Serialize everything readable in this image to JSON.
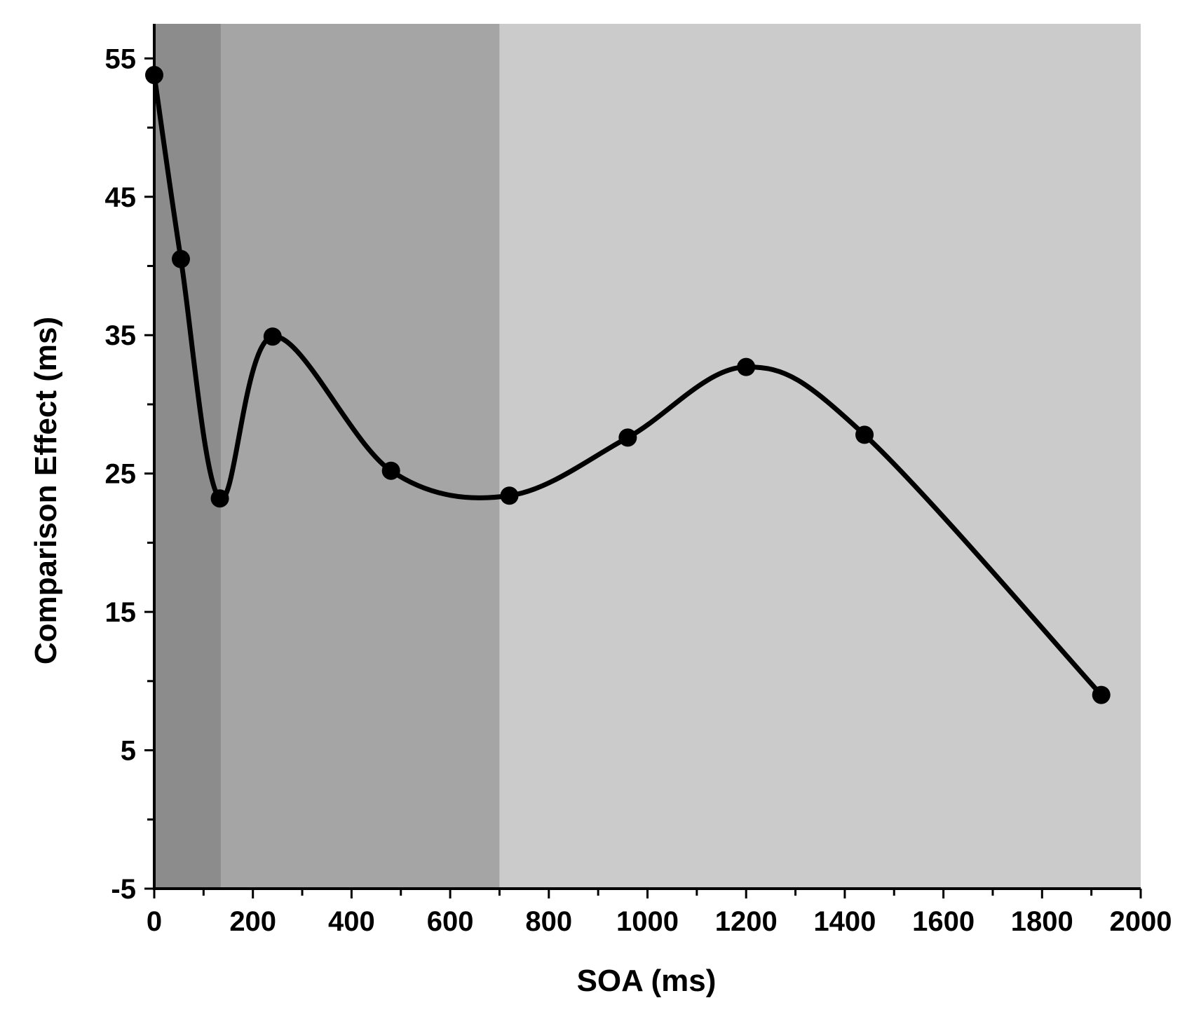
{
  "chart_data": {
    "type": "line",
    "xlabel": "SOA (ms)",
    "ylabel": "Comparison Effect (ms)",
    "xlim": [
      0,
      2000
    ],
    "ylim": [
      -5,
      57.5
    ],
    "x_ticks": [
      0,
      200,
      400,
      600,
      800,
      1000,
      1200,
      1400,
      1600,
      1800,
      2000
    ],
    "x_minor_step": 100,
    "y_ticks": [
      -5,
      5,
      15,
      25,
      35,
      45,
      55
    ],
    "y_minor_step": 5,
    "grid": false,
    "smooth": true,
    "background_bands": [
      {
        "from": 0,
        "to": 135,
        "color": "#8c8c8c"
      },
      {
        "from": 135,
        "to": 700,
        "color": "#a5a5a5"
      },
      {
        "from": 700,
        "to": 2000,
        "color": "#cbcbcb"
      }
    ],
    "series": [
      {
        "color": "#000000",
        "x": [
          0,
          54,
          133,
          240,
          480,
          720,
          960,
          1200,
          1440,
          1920
        ],
        "y": [
          53.8,
          40.5,
          23.2,
          34.9,
          25.2,
          23.4,
          27.6,
          32.7,
          27.8,
          9.0
        ]
      }
    ]
  }
}
